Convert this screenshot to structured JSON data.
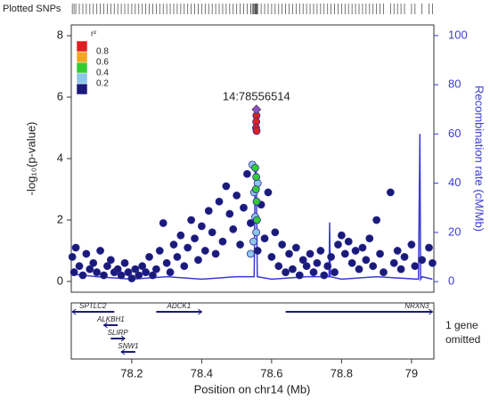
{
  "chart_data": {
    "type": "scatter",
    "rug_title": "Plotted SNPs",
    "ylabel": "-log₁₀(p-value)",
    "y2label": "Recombination rate (cM/Mb)",
    "xlabel": "Position on chr14 (Mb)",
    "xlim": [
      78.027,
      79.064
    ],
    "xticks": [
      78.2,
      78.4,
      78.6,
      78.8,
      79
    ],
    "ylim": [
      -0.35,
      8.35
    ],
    "yticks": [
      0,
      2,
      4,
      6,
      8
    ],
    "y2lim": [
      -4.3,
      104.3
    ],
    "y2ticks": [
      0,
      20,
      40,
      60,
      80,
      100
    ],
    "legend": {
      "title": "r²",
      "breaks": [
        0.2,
        0.4,
        0.6,
        0.8
      ],
      "colors": [
        "#1a1a7a",
        "#8ec6ea",
        "#33cc33",
        "#f5a623",
        "#e02020"
      ]
    },
    "series": [
      {
        "color": "#1a1a7a",
        "x": [
          78.03,
          78.035,
          78.04,
          78.05,
          78.06,
          78.07,
          78.08,
          78.09,
          78.1,
          78.11,
          78.12,
          78.13,
          78.14,
          78.15,
          78.16,
          78.17,
          78.18,
          78.19,
          78.2,
          78.21,
          78.22,
          78.23,
          78.24,
          78.25,
          78.26,
          78.27,
          78.28,
          78.29,
          78.3,
          78.31,
          78.32,
          78.33,
          78.34,
          78.35,
          78.36,
          78.37,
          78.38,
          78.39,
          78.4,
          78.41,
          78.42,
          78.43,
          78.44,
          78.45,
          78.46,
          78.47,
          78.48,
          78.49,
          78.5,
          78.51,
          78.52,
          78.53,
          78.54,
          78.56,
          78.57,
          78.58,
          78.59,
          78.6,
          78.61,
          78.62,
          78.63,
          78.64,
          78.65,
          78.66,
          78.67,
          78.68,
          78.69,
          78.7,
          78.71,
          78.72,
          78.73,
          78.74,
          78.75,
          78.76,
          78.77,
          78.78,
          78.79,
          78.8,
          78.81,
          78.82,
          78.83,
          78.84,
          78.85,
          78.86,
          78.87,
          78.88,
          78.89,
          78.9,
          78.91,
          78.92,
          78.94,
          78.95,
          78.96,
          78.97,
          78.98,
          79.0,
          79.01,
          79.03,
          79.05,
          79.06
        ],
        "y": [
          0.8,
          0.3,
          1.1,
          0.5,
          0.2,
          0.9,
          0.4,
          0.6,
          0.3,
          1.0,
          0.2,
          0.5,
          0.7,
          0.3,
          0.4,
          0.2,
          0.6,
          0.3,
          0.1,
          0.4,
          0.2,
          0.5,
          0.3,
          0.8,
          0.2,
          0.4,
          1.0,
          1.9,
          0.6,
          0.3,
          1.2,
          0.8,
          1.5,
          0.5,
          1.1,
          2.0,
          1.4,
          0.7,
          1.8,
          1.0,
          2.3,
          1.6,
          0.9,
          2.6,
          1.3,
          3.1,
          2.2,
          1.7,
          2.8,
          1.2,
          2.4,
          3.5,
          1.9,
          1.0,
          2.5,
          1.4,
          2.9,
          0.8,
          1.6,
          0.5,
          1.2,
          0.3,
          0.9,
          0.4,
          1.1,
          0.2,
          0.7,
          0.5,
          0.9,
          0.3,
          0.6,
          1.0,
          0.2,
          0.5,
          0.8,
          0.3,
          1.2,
          1.5,
          0.9,
          1.3,
          0.6,
          1.0,
          0.4,
          1.1,
          0.7,
          1.4,
          0.5,
          2.0,
          0.9,
          0.3,
          2.9,
          0.6,
          1.0,
          0.4,
          0.8,
          1.2,
          0.5,
          0.7,
          1.1,
          0.6
        ]
      },
      {
        "color": "#8ec6ea",
        "x": [
          78.545,
          78.55,
          78.553,
          78.556,
          78.548,
          78.54,
          78.56
        ],
        "y": [
          3.8,
          2.9,
          2.1,
          1.6,
          1.3,
          0.9,
          3.2
        ]
      },
      {
        "color": "#33cc33",
        "x": [
          78.553,
          78.556,
          78.555,
          78.557,
          78.558
        ],
        "y": [
          3.7,
          3.4,
          3.0,
          2.6,
          2.0
        ]
      },
      {
        "color": "#e02020",
        "x": [
          78.5565,
          78.556,
          78.5555,
          78.557
        ],
        "y": [
          5.4,
          5.2,
          5.0,
          4.9
        ]
      }
    ],
    "index_snp": {
      "label": "14:78556514",
      "x": 78.556514,
      "y": 5.6,
      "color": "#8a4fc0"
    },
    "recombination": {
      "color": "#3b3bd6",
      "x": [
        78.03,
        78.1,
        78.2,
        78.3,
        78.4,
        78.5,
        78.55,
        78.553,
        78.556,
        78.559,
        78.6,
        78.7,
        78.764,
        78.766,
        78.768,
        78.8,
        78.9,
        79.02,
        79.024,
        79.026,
        79.03,
        79.06
      ],
      "y": [
        3,
        2,
        1,
        2,
        1,
        2,
        2,
        45,
        45,
        2,
        1,
        2,
        2,
        24,
        2,
        1,
        2,
        1,
        60,
        1,
        2,
        1
      ]
    },
    "genes": [
      {
        "name": "SPTLC2",
        "start": 78.03,
        "end": 78.15,
        "row": 0,
        "strand": "-"
      },
      {
        "name": "ADCK1",
        "start": 78.27,
        "end": 78.4,
        "row": 0,
        "strand": "+"
      },
      {
        "name": "NRXN3",
        "start": 78.64,
        "end": 79.06,
        "row": 0,
        "strand": "+"
      },
      {
        "name": "ALKBH1",
        "start": 78.12,
        "end": 78.16,
        "row": 1,
        "strand": "-"
      },
      {
        "name": "SLIRP",
        "start": 78.14,
        "end": 78.18,
        "row": 2,
        "strand": "+"
      },
      {
        "name": "SNW1",
        "start": 78.17,
        "end": 78.21,
        "row": 3,
        "strand": "-"
      }
    ],
    "gene_note": [
      "1 gene",
      "omitted"
    ]
  }
}
